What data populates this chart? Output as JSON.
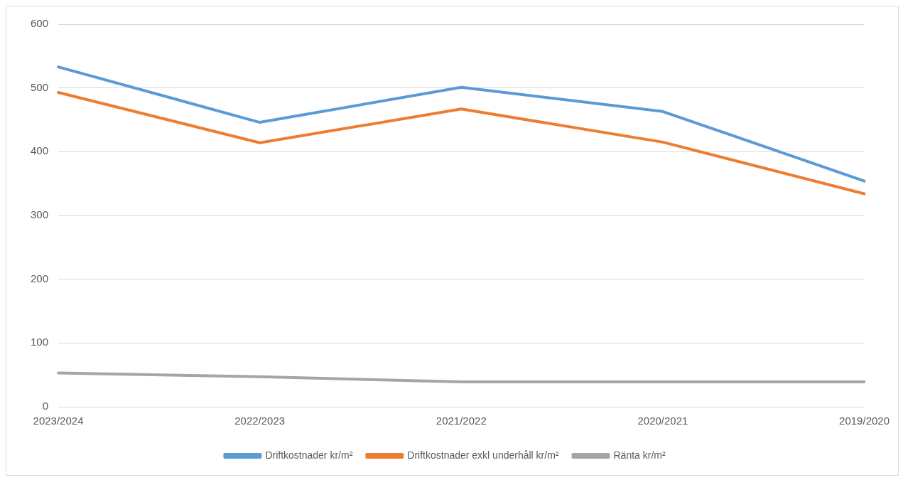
{
  "chart_data": {
    "type": "line",
    "categories": [
      "2023/2024",
      "2022/2023",
      "2021/2022",
      "2020/2021",
      "2019/2020"
    ],
    "series": [
      {
        "name": "Driftkostnader kr/m²",
        "color": "#5b9bd5",
        "values": [
          533,
          446,
          501,
          463,
          354
        ]
      },
      {
        "name": "Driftkostnader exkl underhåll kr/m²",
        "color": "#ed7d31",
        "values": [
          493,
          414,
          467,
          415,
          334
        ]
      },
      {
        "name": "Ränta kr/m²",
        "color": "#a5a5a5",
        "values": [
          53,
          47,
          39,
          39,
          39
        ]
      }
    ],
    "ylim": [
      0,
      600
    ],
    "yticks": [
      0,
      100,
      200,
      300,
      400,
      500,
      600
    ],
    "grid": "y",
    "legend": "bottom",
    "marker": "none",
    "line_style": "solid"
  }
}
